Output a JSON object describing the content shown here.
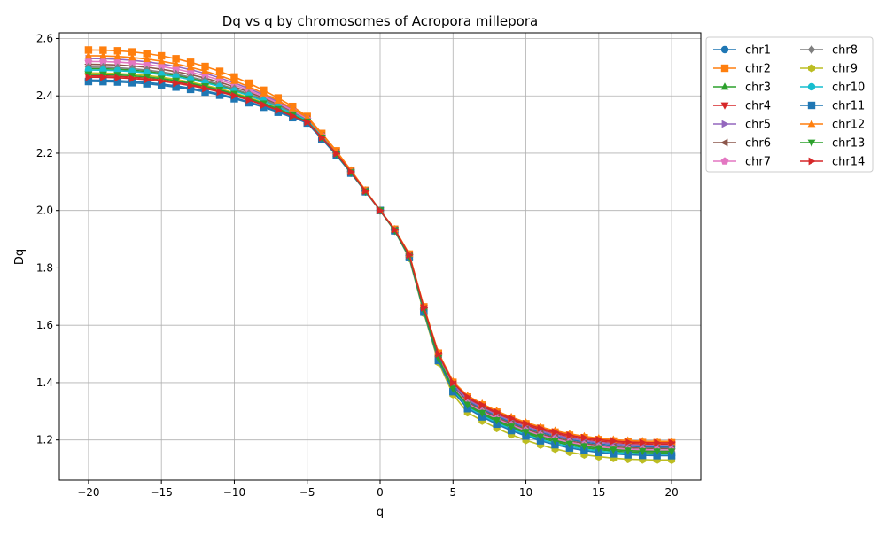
{
  "chart_data": {
    "type": "line",
    "title": "Dq vs q by chromosomes of Acropora millepora",
    "xlabel": "q",
    "ylabel": "Dq",
    "xlim": [
      -22,
      22
    ],
    "ylim": [
      1.06,
      2.62
    ],
    "xticks": [
      "−20",
      "−15",
      "−10",
      "−5",
      "0",
      "5",
      "10",
      "15",
      "20"
    ],
    "yticks": [
      "1.2",
      "1.4",
      "1.6",
      "1.8",
      "2.0",
      "2.2",
      "2.4",
      "2.6"
    ],
    "grid": true,
    "legend": "outside-top-right, 2 columns",
    "x": [
      -20,
      -19,
      -18,
      -17,
      -16,
      -15,
      -14,
      -13,
      -12,
      -11,
      -10,
      -9,
      -8,
      -7,
      -6,
      -5,
      -4,
      -3,
      -2,
      -1,
      0,
      1,
      2,
      3,
      4,
      5,
      6,
      7,
      8,
      9,
      10,
      11,
      12,
      13,
      14,
      15,
      16,
      17,
      18,
      19,
      20
    ],
    "series": [
      {
        "name": "chr1",
        "color": "#1f77b4",
        "marker": "circle",
        "left": 2.455,
        "right": 1.175
      },
      {
        "name": "chr2",
        "color": "#ff7f0e",
        "marker": "square",
        "left": 2.56,
        "right": 1.19
      },
      {
        "name": "chr3",
        "color": "#2ca02c",
        "marker": "triangle-up",
        "left": 2.495,
        "right": 1.155
      },
      {
        "name": "chr4",
        "color": "#d62728",
        "marker": "triangle-down",
        "left": 2.47,
        "right": 1.185
      },
      {
        "name": "chr5",
        "color": "#9467bd",
        "marker": "triangle-right",
        "left": 2.53,
        "right": 1.18
      },
      {
        "name": "chr6",
        "color": "#8c564b",
        "marker": "triangle-left",
        "left": 2.51,
        "right": 1.17
      },
      {
        "name": "chr7",
        "color": "#e377c2",
        "marker": "pentagon",
        "left": 2.52,
        "right": 1.165
      },
      {
        "name": "chr8",
        "color": "#7f7f7f",
        "marker": "diamond",
        "left": 2.5,
        "right": 1.16
      },
      {
        "name": "chr9",
        "color": "#bcbd22",
        "marker": "hexagon",
        "left": 2.48,
        "right": 1.13
      },
      {
        "name": "chr10",
        "color": "#17becf",
        "marker": "circle",
        "left": 2.49,
        "right": 1.15
      },
      {
        "name": "chr11",
        "color": "#1f77b4",
        "marker": "square",
        "left": 2.45,
        "right": 1.145
      },
      {
        "name": "chr12",
        "color": "#ff7f0e",
        "marker": "triangle-up",
        "left": 2.54,
        "right": 1.195
      },
      {
        "name": "chr13",
        "color": "#2ca02c",
        "marker": "triangle-down",
        "left": 2.475,
        "right": 1.16
      },
      {
        "name": "chr14",
        "color": "#d62728",
        "marker": "triangle-right",
        "left": 2.465,
        "right": 1.19
      }
    ]
  }
}
